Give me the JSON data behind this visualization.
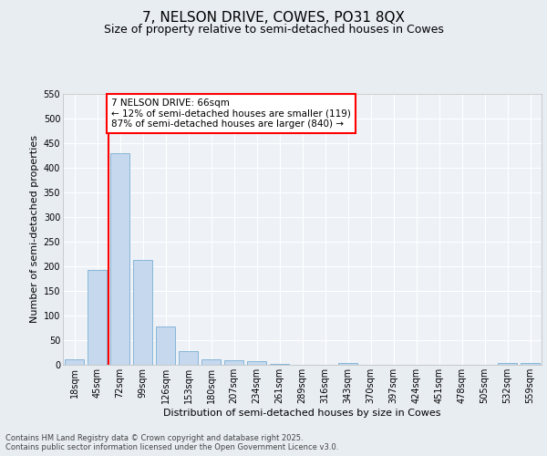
{
  "title": "7, NELSON DRIVE, COWES, PO31 8QX",
  "subtitle": "Size of property relative to semi-detached houses in Cowes",
  "xlabel": "Distribution of semi-detached houses by size in Cowes",
  "ylabel": "Number of semi-detached properties",
  "categories": [
    "18sqm",
    "45sqm",
    "72sqm",
    "99sqm",
    "126sqm",
    "153sqm",
    "180sqm",
    "207sqm",
    "234sqm",
    "261sqm",
    "289sqm",
    "316sqm",
    "343sqm",
    "370sqm",
    "397sqm",
    "424sqm",
    "451sqm",
    "478sqm",
    "505sqm",
    "532sqm",
    "559sqm"
  ],
  "values": [
    12,
    193,
    428,
    212,
    77,
    27,
    12,
    10,
    7,
    1,
    0,
    0,
    3,
    0,
    0,
    0,
    0,
    0,
    0,
    3,
    3
  ],
  "bar_color": "#c5d8ed",
  "bar_edge_color": "#7aafd4",
  "property_line_x": 1.5,
  "property_sqm": 66,
  "annotation_text": "7 NELSON DRIVE: 66sqm\n← 12% of semi-detached houses are smaller (119)\n87% of semi-detached houses are larger (840) →",
  "ylim": [
    0,
    550
  ],
  "yticks": [
    0,
    50,
    100,
    150,
    200,
    250,
    300,
    350,
    400,
    450,
    500,
    550
  ],
  "bg_color": "#e8edf2",
  "plot_bg_color": "#eef2f7",
  "footer": "Contains HM Land Registry data © Crown copyright and database right 2025.\nContains public sector information licensed under the Open Government Licence v3.0.",
  "title_fontsize": 11,
  "subtitle_fontsize": 9,
  "axis_label_fontsize": 8,
  "tick_fontsize": 7,
  "annotation_fontsize": 7.5,
  "footer_fontsize": 6
}
